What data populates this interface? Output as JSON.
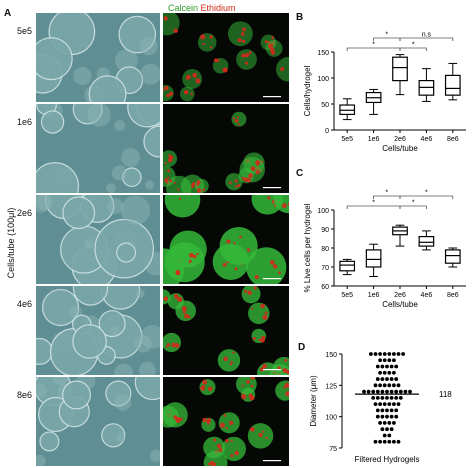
{
  "panel_a": {
    "letter": "A",
    "stain_label_green": "Calcein",
    "stain_label_red": "Ethidium",
    "y_axis_label": "Cells/tube (100μl)",
    "rows": [
      "5e5",
      "1e6",
      "2e6",
      "4e6",
      "8e6"
    ],
    "colors": {
      "calcein": "#35b93a",
      "ethidium": "#d42a1c"
    }
  },
  "chart_data": [
    {
      "panel": "B",
      "type": "boxplot",
      "title": "",
      "xlabel": "Cells/tube",
      "ylabel": "Cells/hydrogel",
      "categories": [
        "5e5",
        "1e6",
        "2e6",
        "4e6",
        "8e6"
      ],
      "ylim": [
        0,
        150
      ],
      "yticks": [
        0,
        50,
        100,
        150
      ],
      "boxes": [
        {
          "min": 20,
          "q1": 30,
          "median": 38,
          "q3": 48,
          "max": 60
        },
        {
          "min": 30,
          "q1": 53,
          "median": 62,
          "q3": 72,
          "max": 78
        },
        {
          "min": 68,
          "q1": 95,
          "median": 120,
          "q3": 140,
          "max": 145
        },
        {
          "min": 55,
          "q1": 67,
          "median": 82,
          "q3": 95,
          "max": 118
        },
        {
          "min": 58,
          "q1": 67,
          "median": 80,
          "q3": 105,
          "max": 128
        }
      ],
      "significance": [
        {
          "from": 0,
          "to": 2,
          "label": "*"
        },
        {
          "from": 1,
          "to": 2,
          "label": "*"
        },
        {
          "from": 2,
          "to": 3,
          "label": "*"
        },
        {
          "from": 2,
          "to": 4,
          "label": "n.s"
        }
      ]
    },
    {
      "panel": "C",
      "type": "boxplot",
      "title": "",
      "xlabel": "Cells/tube",
      "ylabel": "% Live cells per hydrogel",
      "categories": [
        "5e5",
        "1e6",
        "2e6",
        "4e6",
        "8e6"
      ],
      "ylim": [
        60,
        100
      ],
      "yticks": [
        60,
        70,
        80,
        90,
        100
      ],
      "boxes": [
        {
          "min": 66,
          "q1": 68,
          "median": 71,
          "q3": 73,
          "max": 74
        },
        {
          "min": 65,
          "q1": 70,
          "median": 74,
          "q3": 79,
          "max": 82
        },
        {
          "min": 81,
          "q1": 87,
          "median": 89,
          "q3": 91,
          "max": 92
        },
        {
          "min": 79,
          "q1": 81,
          "median": 83,
          "q3": 86,
          "max": 89
        },
        {
          "min": 70,
          "q1": 72,
          "median": 76,
          "q3": 79,
          "max": 80
        }
      ],
      "significance": [
        {
          "from": 0,
          "to": 2,
          "label": "*"
        },
        {
          "from": 1,
          "to": 2,
          "label": "*"
        },
        {
          "from": 2,
          "to": 3,
          "label": "*"
        },
        {
          "from": 2,
          "to": 4,
          "label": "*"
        }
      ]
    },
    {
      "panel": "D",
      "type": "scatter",
      "title": "",
      "xlabel": "Filtered Hydrogels",
      "ylabel": "Diameter (μm)",
      "ylim": [
        75,
        150
      ],
      "yticks": [
        75,
        100,
        125,
        150
      ],
      "mean": 118,
      "mean_label": "118",
      "rows": [
        {
          "y": 150,
          "n": 8
        },
        {
          "y": 145,
          "n": 4
        },
        {
          "y": 140,
          "n": 5
        },
        {
          "y": 135,
          "n": 4
        },
        {
          "y": 130,
          "n": 5
        },
        {
          "y": 125,
          "n": 6
        },
        {
          "y": 120,
          "n": 11
        },
        {
          "y": 115,
          "n": 7
        },
        {
          "y": 110,
          "n": 6
        },
        {
          "y": 105,
          "n": 5
        },
        {
          "y": 100,
          "n": 5
        },
        {
          "y": 95,
          "n": 4
        },
        {
          "y": 90,
          "n": 3
        },
        {
          "y": 85,
          "n": 2
        },
        {
          "y": 80,
          "n": 6
        }
      ]
    }
  ]
}
